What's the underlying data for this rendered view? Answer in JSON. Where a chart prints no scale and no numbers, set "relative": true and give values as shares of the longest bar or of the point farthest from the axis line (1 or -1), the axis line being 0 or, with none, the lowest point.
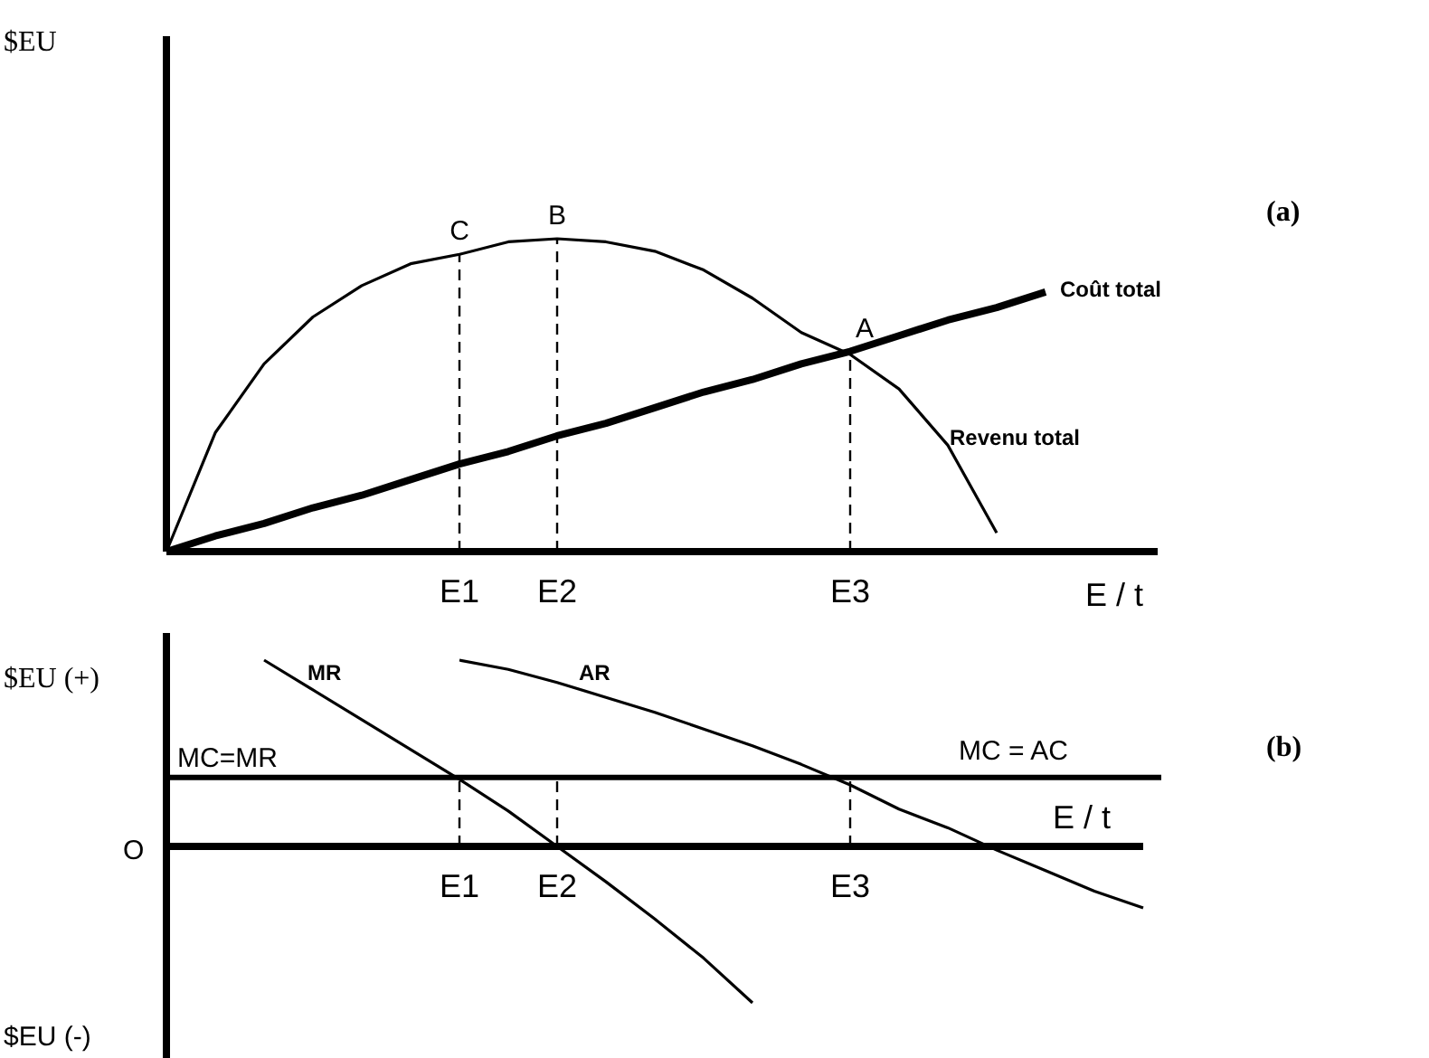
{
  "chart_data": [
    {
      "type": "line",
      "relative": true,
      "xlabel": "E / t",
      "ylabel": "$EU",
      "categories": [
        null,
        null,
        null,
        null,
        null,
        null,
        "E1",
        null,
        "E2",
        null,
        null,
        null,
        null,
        null,
        "E3",
        null,
        null,
        null,
        null,
        null,
        null
      ],
      "series": [
        {
          "name": "Coût total",
          "color": "#000000",
          "values": [
            0,
            0.05,
            0.09,
            0.14,
            0.18,
            0.23,
            0.28,
            0.32,
            0.37,
            0.41,
            0.46,
            0.51,
            0.55,
            0.6,
            0.64,
            0.69,
            0.74,
            0.78,
            0.83,
            null,
            null
          ]
        },
        {
          "name": "Revenu total",
          "color": "#000000",
          "values": [
            0,
            0.38,
            0.6,
            0.75,
            0.85,
            0.92,
            0.95,
            0.99,
            1.0,
            0.99,
            0.96,
            0.9,
            0.81,
            0.7,
            0.63,
            0.52,
            0.34,
            0.06,
            null,
            null,
            null
          ]
        }
      ],
      "ref_lines": [
        {
          "axis": "x",
          "value": "E1",
          "line_style": "dashed"
        },
        {
          "axis": "x",
          "value": "E2",
          "line_style": "dashed"
        },
        {
          "axis": "x",
          "value": "E3",
          "line_style": "dashed"
        }
      ],
      "annotations": [
        "(a)",
        {
          "text": "C",
          "x": "E1",
          "y": 0.95
        },
        {
          "text": "B",
          "x": "E2",
          "y": 1.0
        },
        {
          "text": "A",
          "x": "E3",
          "y": 0.64
        }
      ]
    },
    {
      "type": "line",
      "relative": true,
      "xlabel": "E / t",
      "ylabel": "$EU (+)",
      "categories": [
        null,
        null,
        null,
        null,
        null,
        null,
        "E1",
        null,
        "E2",
        null,
        null,
        null,
        null,
        null,
        "E3",
        null,
        null,
        null,
        null,
        null,
        null
      ],
      "series": [
        {
          "name": "MR",
          "color": "#000000",
          "values": [
            null,
            null,
            1.0,
            0.84,
            0.68,
            0.52,
            0.36,
            0.19,
            0.0,
            -0.19,
            -0.39,
            -0.6,
            -0.84,
            null,
            null,
            null,
            null,
            null,
            null,
            null,
            null
          ]
        },
        {
          "name": "AR",
          "color": "#000000",
          "values": [
            null,
            null,
            null,
            null,
            null,
            null,
            1.0,
            0.95,
            0.88,
            0.8,
            0.72,
            0.63,
            0.54,
            0.44,
            0.33,
            0.2,
            0.1,
            -0.02,
            -0.13,
            -0.24,
            -0.33
          ]
        }
      ],
      "ref_lines": [
        {
          "axis": "y",
          "value": 0.37,
          "label": "MC=MR"
        },
        {
          "axis": "x",
          "value": "E1",
          "line_style": "dashed"
        },
        {
          "axis": "x",
          "value": "E2",
          "line_style": "dashed"
        },
        {
          "axis": "x",
          "value": "E3",
          "line_style": "dashed"
        }
      ],
      "annotations": [
        "(b)",
        "MC = AC",
        "O",
        "$EU (-)"
      ]
    }
  ]
}
